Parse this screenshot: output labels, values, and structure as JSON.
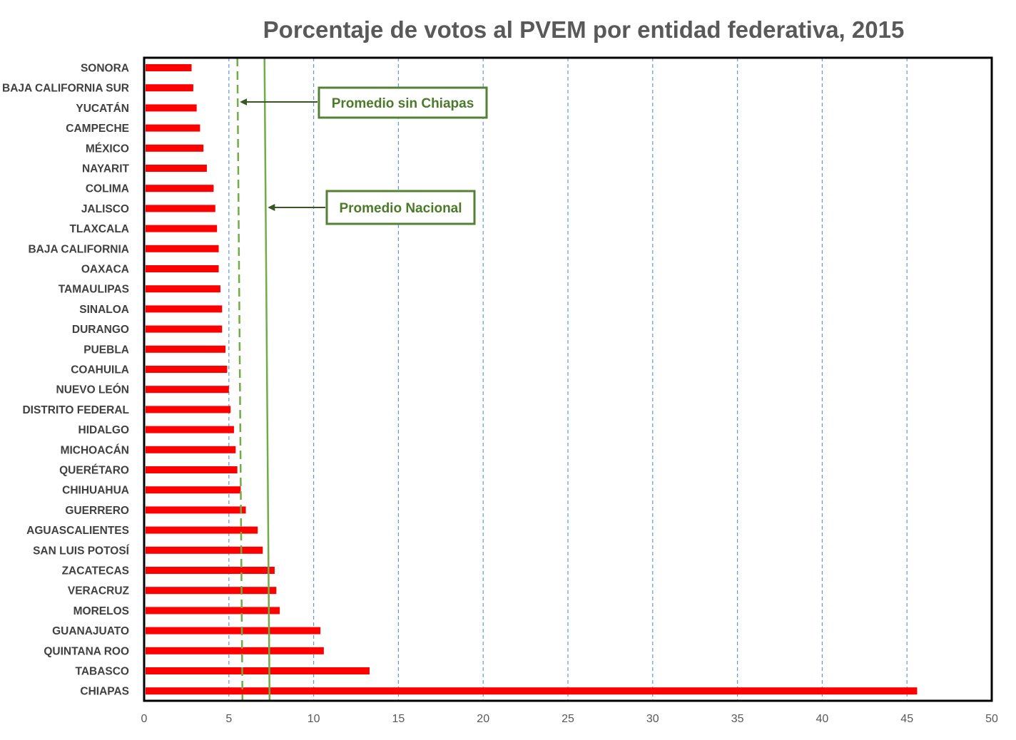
{
  "chart_data": {
    "type": "bar",
    "orientation": "horizontal",
    "title": "Porcentaje de votos al PVEM por entidad federativa, 2015",
    "xlabel": "",
    "ylabel": "",
    "xlim": [
      0,
      50
    ],
    "x_ticks": [
      "0",
      "5",
      "10",
      "15",
      "20",
      "25",
      "30",
      "35",
      "40",
      "45",
      "50"
    ],
    "grid": "vertical dashed",
    "bar_color": "#ff0000",
    "categories": [
      "SONORA",
      "BAJA CALIFORNIA SUR",
      "YUCATÁN",
      "CAMPECHE",
      "MÉXICO",
      "NAYARIT",
      "COLIMA",
      "JALISCO",
      "TLAXCALA",
      "BAJA CALIFORNIA",
      "OAXACA",
      "TAMAULIPAS",
      "SINALOA",
      "DURANGO",
      "PUEBLA",
      "COAHUILA",
      "NUEVO LEÓN",
      "DISTRITO FEDERAL",
      "HIDALGO",
      "MICHOACÁN",
      "QUERÉTARO",
      "CHIHUAHUA",
      "GUERRERO",
      "AGUASCALIENTES",
      "SAN LUIS POTOSÍ",
      "ZACATECAS",
      "VERACRUZ",
      "MORELOS",
      "GUANAJUATO",
      "QUINTANA ROO",
      "TABASCO",
      "CHIAPAS"
    ],
    "values": [
      2.8,
      2.9,
      3.1,
      3.3,
      3.5,
      3.7,
      4.1,
      4.2,
      4.3,
      4.4,
      4.4,
      4.5,
      4.6,
      4.6,
      4.8,
      4.9,
      5.0,
      5.1,
      5.3,
      5.4,
      5.5,
      5.7,
      6.0,
      6.7,
      7.0,
      7.7,
      7.8,
      8.0,
      10.4,
      10.6,
      13.3,
      45.6
    ],
    "reference_lines": [
      {
        "name": "Promedio sin Chiapas",
        "style": "dashed",
        "color": "#70ad47",
        "x_top": 5.5,
        "x_bottom": 5.8
      },
      {
        "name": "Promedio Nacional",
        "style": "solid",
        "color": "#70ad47",
        "x_top": 7.1,
        "x_bottom": 7.4
      }
    ],
    "annotations": [
      {
        "text": "Promedio sin Chiapas",
        "target": "Promedio sin Chiapas"
      },
      {
        "text": "Promedio Nacional",
        "target": "Promedio Nacional"
      }
    ],
    "colors": {
      "grid": "#5b9bd5",
      "frame": "#000000",
      "callout_border": "#548235",
      "callout_text": "#4b7b2a",
      "arrow": "#375623"
    }
  }
}
